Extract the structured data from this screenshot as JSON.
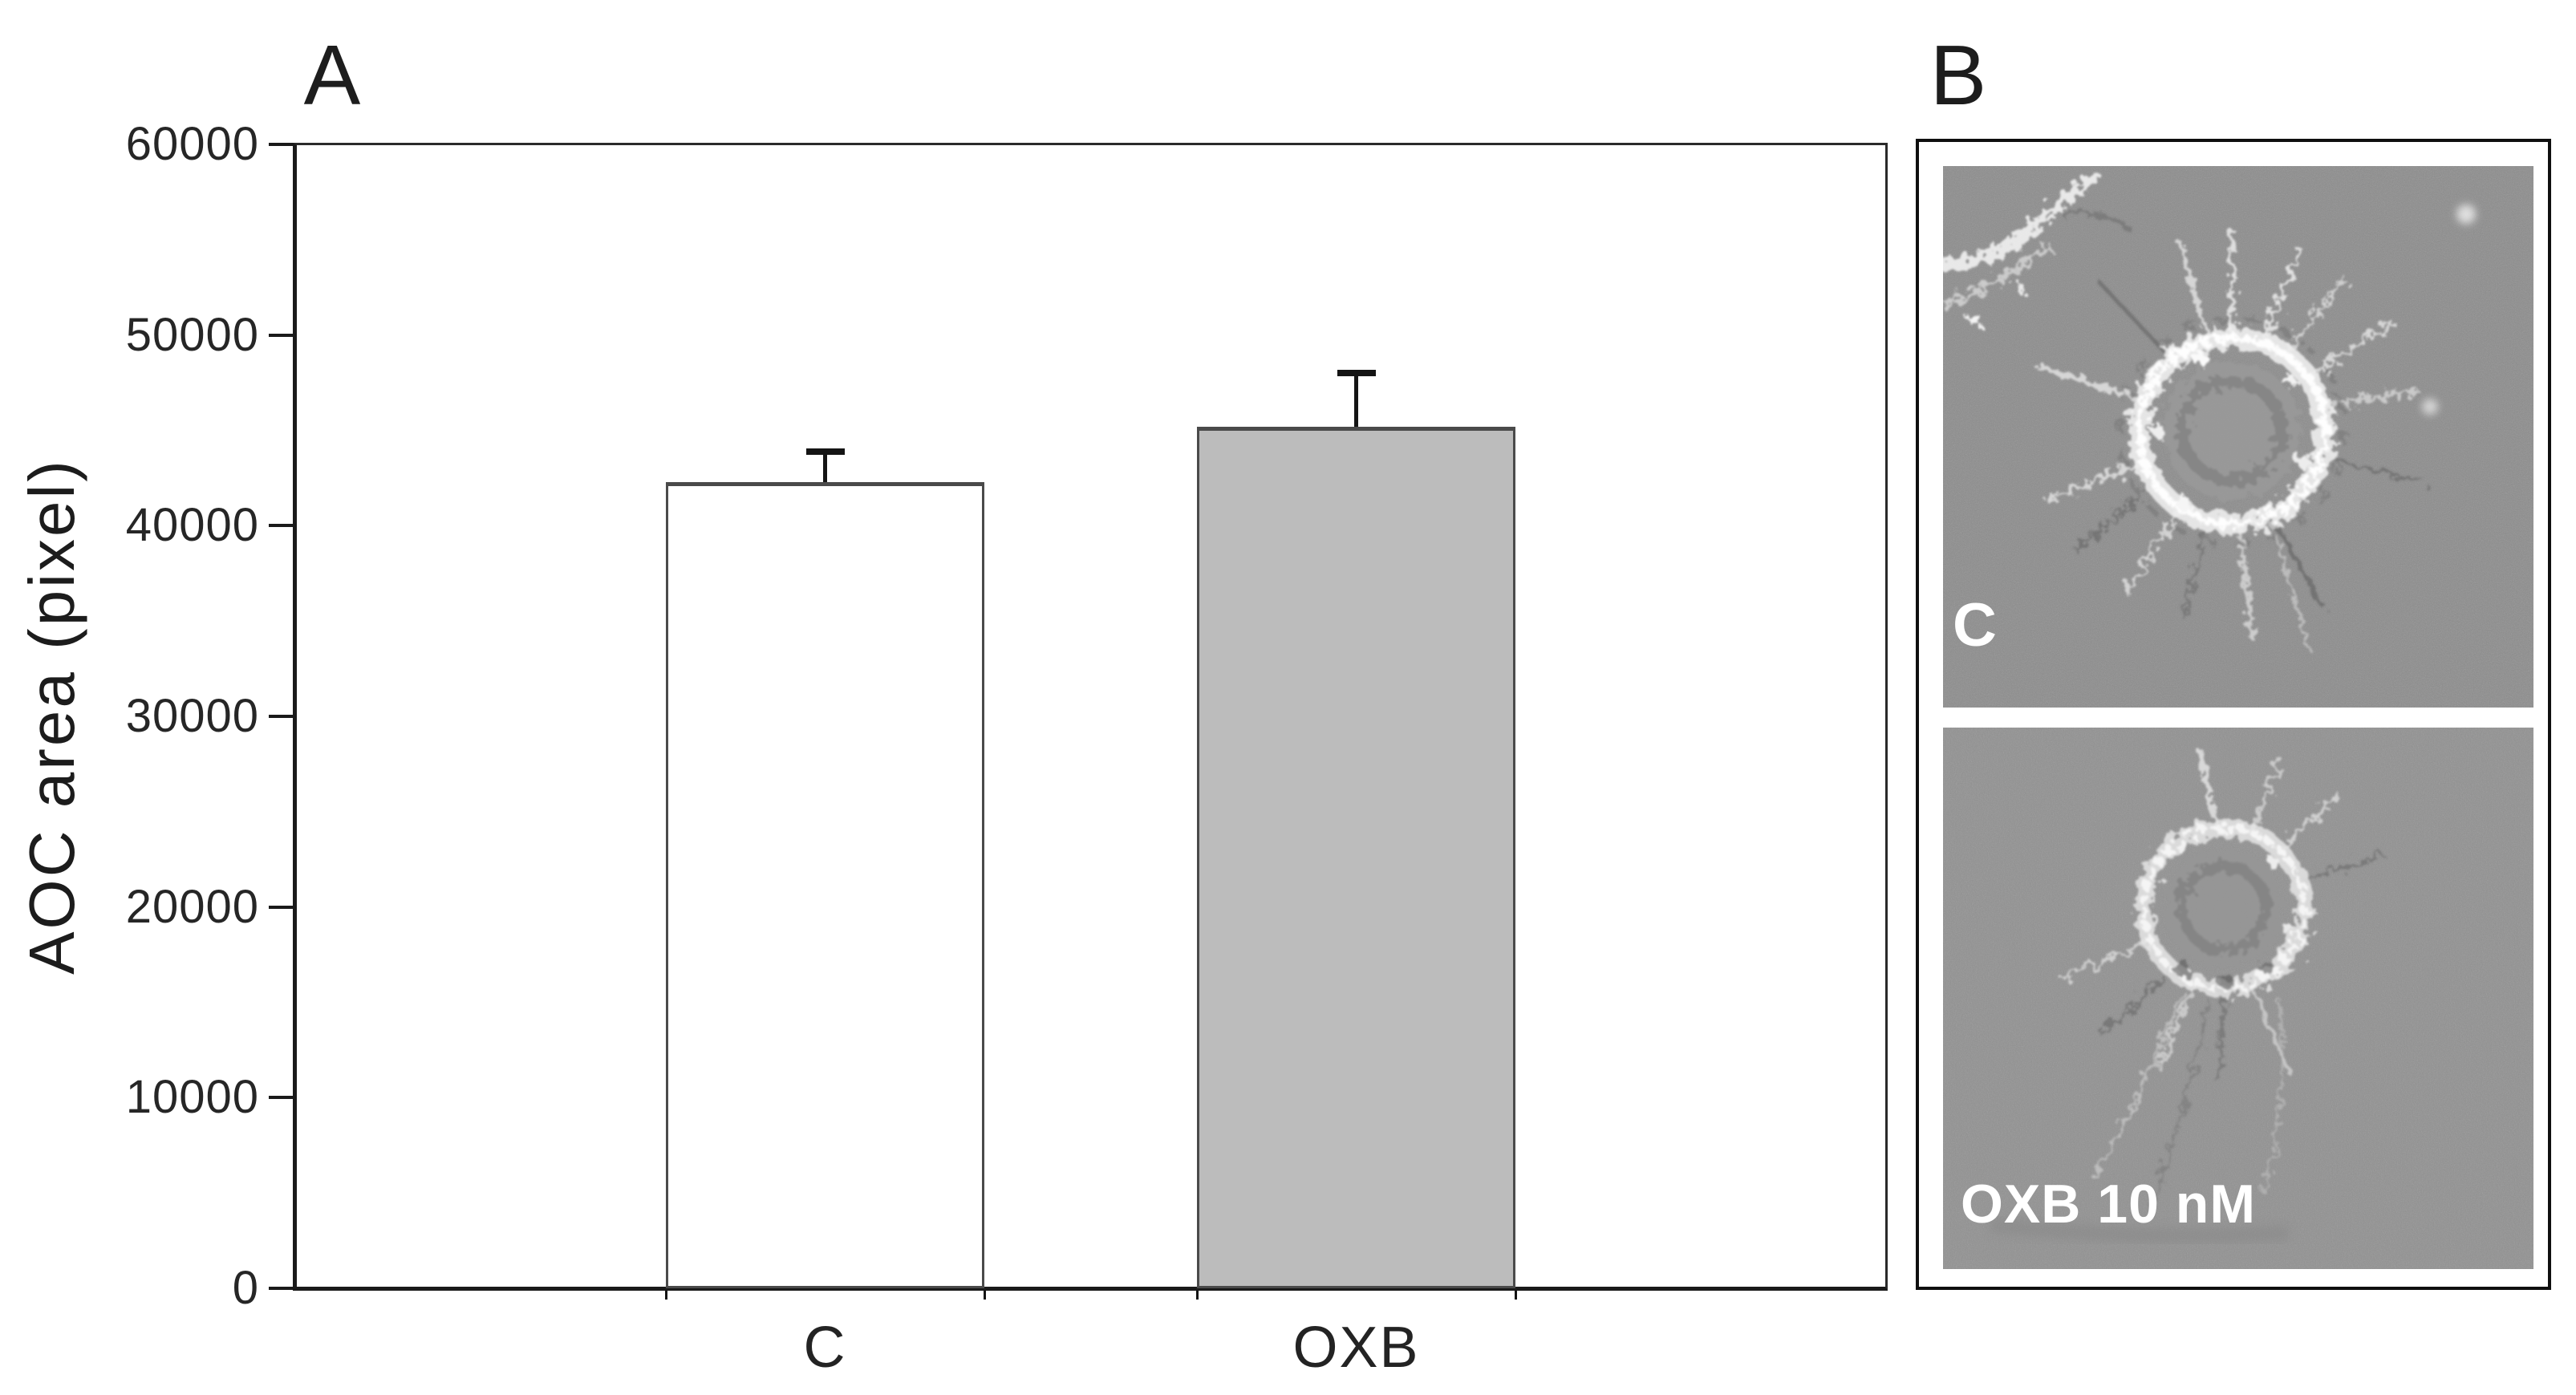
{
  "figure": {
    "panel_a_label": "A",
    "panel_b_label": "B"
  },
  "chart_data": {
    "type": "bar",
    "title": "",
    "xlabel": "",
    "ylabel": "AOC area (pixel)",
    "categories": [
      "C",
      "OXB"
    ],
    "values": [
      42300,
      45200
    ],
    "errors_plus": [
      1600,
      2800
    ],
    "ylim": [
      0,
      60000
    ],
    "ytick_step": 10000,
    "ytick_labels": [
      "0",
      "10000",
      "20000",
      "30000",
      "40000",
      "50000",
      "60000"
    ],
    "bar_fill_colors": [
      "#ffffff",
      "#bcbcbc"
    ],
    "bar_border_color": "#4a4a4a",
    "error_bar_color": "#141414",
    "grid": false,
    "legend": "none"
  },
  "panel_b": {
    "micrographs": [
      {
        "label": "C"
      },
      {
        "label": "OXB 10 nM"
      }
    ],
    "label_color": "#ffffff"
  }
}
